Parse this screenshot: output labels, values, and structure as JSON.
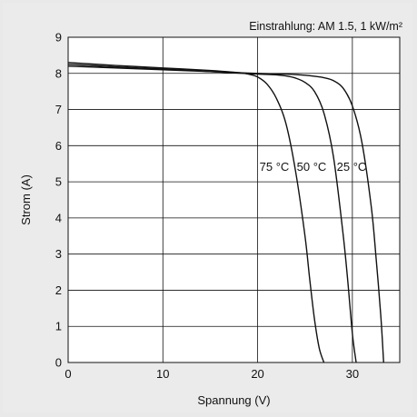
{
  "chart_data": {
    "type": "line",
    "title": "",
    "annotation": "Einstrahlung: AM 1.5, 1 kW/m²",
    "xlabel": "Spannung (V)",
    "ylabel": "Strom (A)",
    "xlim": [
      0,
      35
    ],
    "ylim": [
      0,
      9
    ],
    "xticks": [
      0,
      10,
      20,
      30
    ],
    "yticks": [
      0,
      1,
      2,
      3,
      4,
      5,
      6,
      7,
      8,
      9
    ],
    "grid": true,
    "curve_color": "#111111",
    "series": [
      {
        "name": "25 °C",
        "x": [
          0,
          5,
          10,
          15,
          20,
          23,
          25,
          26,
          27,
          28,
          29,
          30,
          31,
          32,
          32.5,
          33,
          33.3
        ],
        "y": [
          8.2,
          8.15,
          8.1,
          8.05,
          8.0,
          7.98,
          7.95,
          7.92,
          7.88,
          7.8,
          7.6,
          7.1,
          6.1,
          4.3,
          2.9,
          1.3,
          0
        ]
      },
      {
        "name": "50 °C",
        "x": [
          0,
          5,
          10,
          15,
          20,
          22,
          23,
          24,
          25,
          26,
          27,
          28,
          29,
          29.5,
          30,
          30.4
        ],
        "y": [
          8.25,
          8.18,
          8.12,
          8.05,
          7.98,
          7.96,
          7.93,
          7.87,
          7.75,
          7.5,
          6.9,
          5.7,
          3.6,
          2.3,
          0.8,
          0
        ]
      },
      {
        "name": "75 °C",
        "x": [
          0,
          5,
          10,
          15,
          18,
          19,
          20,
          21,
          22,
          23,
          24,
          25,
          25.5,
          26,
          26.5,
          27
        ],
        "y": [
          8.3,
          8.22,
          8.15,
          8.08,
          8.02,
          7.98,
          7.9,
          7.7,
          7.3,
          6.6,
          5.3,
          3.5,
          2.3,
          1.2,
          0.4,
          0
        ]
      }
    ]
  }
}
